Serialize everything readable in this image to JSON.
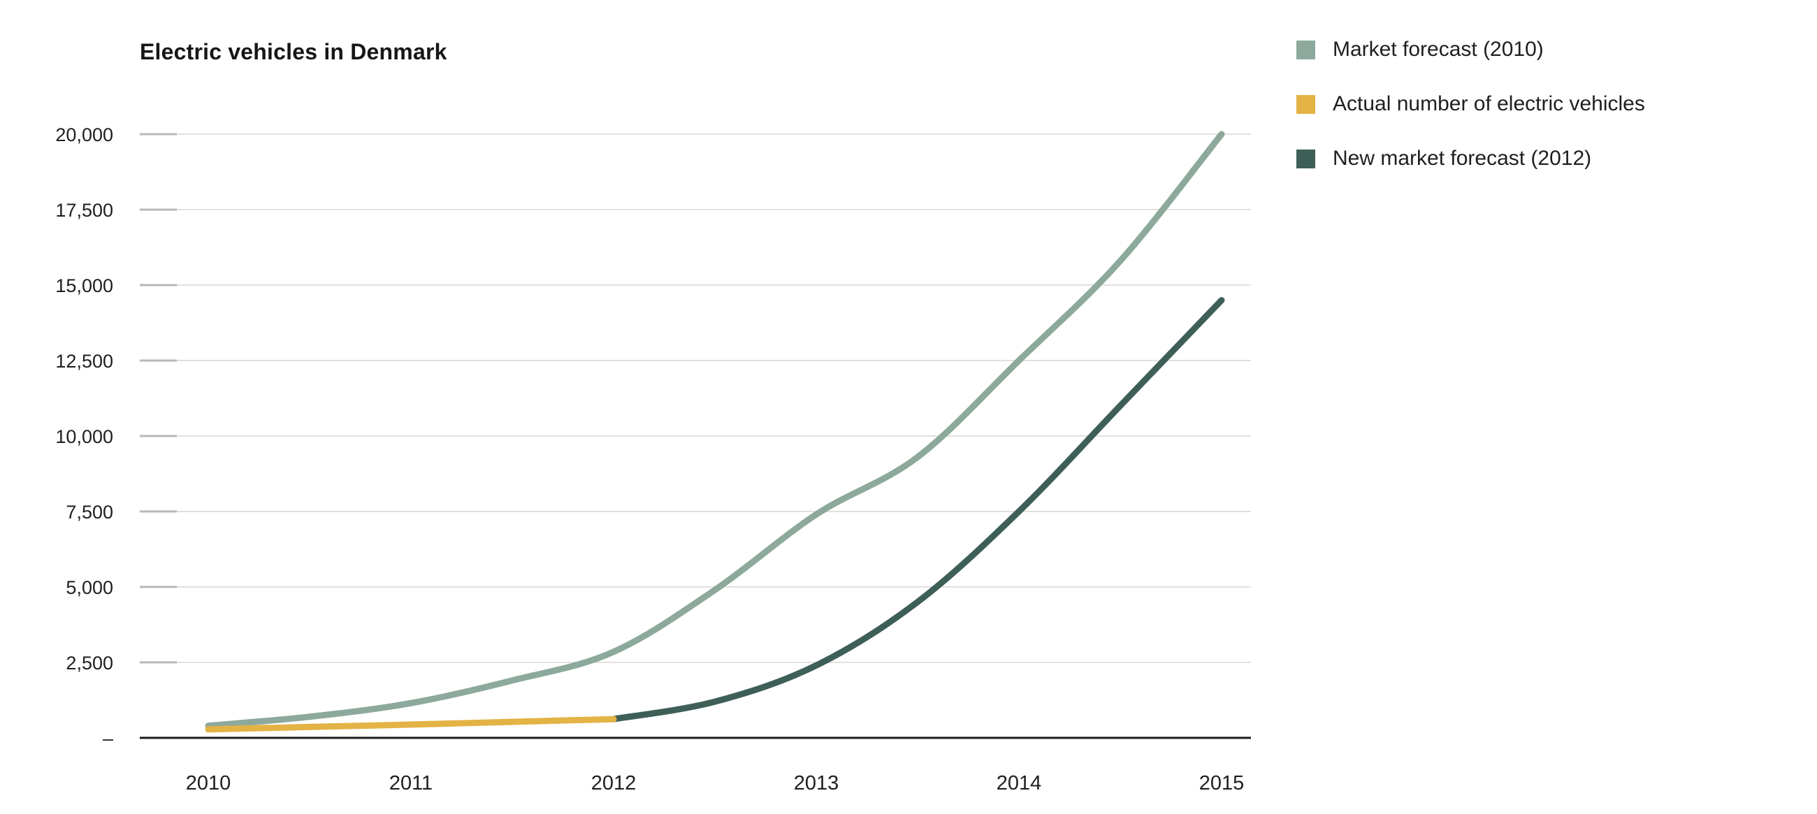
{
  "chart_data": {
    "type": "line",
    "title": "Electric vehicles in Denmark",
    "xlabel": "",
    "ylabel": "",
    "ylim": [
      0,
      20000
    ],
    "grid": "horizontal",
    "legend_position": "top-right",
    "y_ticks": [
      {
        "value": 20000,
        "label": "20,000"
      },
      {
        "value": 17500,
        "label": "17,500"
      },
      {
        "value": 15000,
        "label": "15,000"
      },
      {
        "value": 12500,
        "label": "12,500"
      },
      {
        "value": 10000,
        "label": "10,000"
      },
      {
        "value": 7500,
        "label": "7,500"
      },
      {
        "value": 5000,
        "label": "5,000"
      },
      {
        "value": 2500,
        "label": "2,500"
      },
      {
        "value": 0,
        "label": "–"
      }
    ],
    "x_ticks": [
      {
        "value": 2010,
        "label": "2010"
      },
      {
        "value": 2011,
        "label": "2011"
      },
      {
        "value": 2012,
        "label": "2012"
      },
      {
        "value": 2013,
        "label": "2013"
      },
      {
        "value": 2014,
        "label": "2014"
      },
      {
        "value": 2015,
        "label": "2015"
      }
    ],
    "series": [
      {
        "name": "Market forecast (2010)",
        "color": "#8CA99B",
        "points": [
          [
            2010,
            400
          ],
          [
            2010.5,
            700
          ],
          [
            2011,
            1150
          ],
          [
            2011.5,
            1900
          ],
          [
            2012,
            2850
          ],
          [
            2012.5,
            4900
          ],
          [
            2013,
            7400
          ],
          [
            2013.5,
            9300
          ],
          [
            2014,
            12500
          ],
          [
            2014.5,
            15800
          ],
          [
            2015,
            20000
          ]
        ]
      },
      {
        "name": "New market forecast (2012)",
        "color": "#3E5F57",
        "points": [
          [
            2012,
            620
          ],
          [
            2012.5,
            1200
          ],
          [
            2013,
            2400
          ],
          [
            2013.5,
            4500
          ],
          [
            2014,
            7500
          ],
          [
            2014.5,
            11000
          ],
          [
            2015,
            14500
          ]
        ]
      },
      {
        "name": "Actual number of electric vehicles",
        "color": "#E3B345",
        "points": [
          [
            2010,
            280
          ],
          [
            2010.5,
            360
          ],
          [
            2011,
            440
          ],
          [
            2011.5,
            530
          ],
          [
            2012,
            620
          ]
        ]
      }
    ]
  },
  "legend": {
    "items": [
      {
        "label": "Market forecast (2010)",
        "color": "#8CA99B"
      },
      {
        "label": "Actual number of electric vehicles",
        "color": "#E3B345"
      },
      {
        "label": "New market forecast (2012)",
        "color": "#3E5F57"
      }
    ]
  },
  "colors": {
    "sage": "#8CA99B",
    "gold": "#E3B345",
    "teal": "#3E5F57",
    "gridline": "#e3e1dd",
    "tick": "#b9b7b3",
    "axis": "#1a1a1a",
    "text": "#1f1f1f"
  }
}
